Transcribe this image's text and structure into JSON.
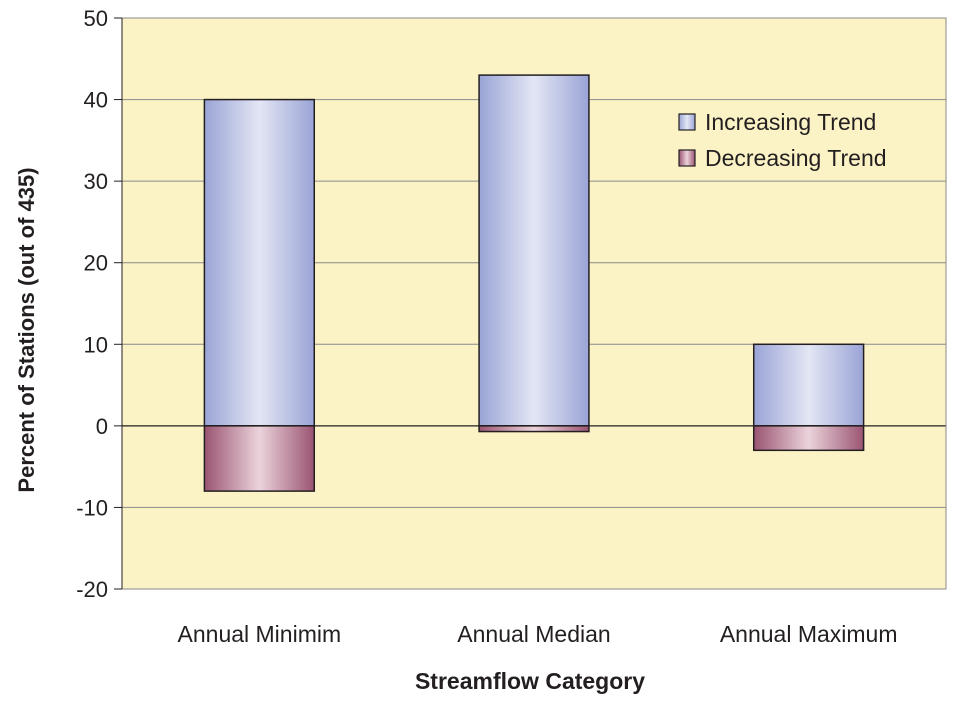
{
  "chart_data": {
    "type": "bar",
    "title": "",
    "xlabel": "Streamflow Category",
    "ylabel": "Percent of Stations (out of 435)",
    "categories": [
      "Annual Minimim",
      "Annual Median",
      "Annual Maximum"
    ],
    "series": [
      {
        "name": "Increasing Trend",
        "values": [
          40,
          43,
          10
        ],
        "color": "#a3add9"
      },
      {
        "name": "Decreasing Trend",
        "values": [
          -8,
          -0.7,
          -3
        ],
        "color": "#a3607c"
      }
    ],
    "ylim": [
      -20,
      50
    ],
    "yticks": [
      -20,
      -10,
      0,
      10,
      20,
      30,
      40,
      50
    ],
    "grid": true,
    "legend_position": "top-right",
    "colors": {
      "plot_background": "#fbf3c6",
      "gridline": "#8a8a8a",
      "increasing_light": "#e3e6f4",
      "increasing_dark": "#9aa4d6",
      "decreasing_light": "#ebd3db",
      "decreasing_dark": "#9a5472"
    }
  }
}
